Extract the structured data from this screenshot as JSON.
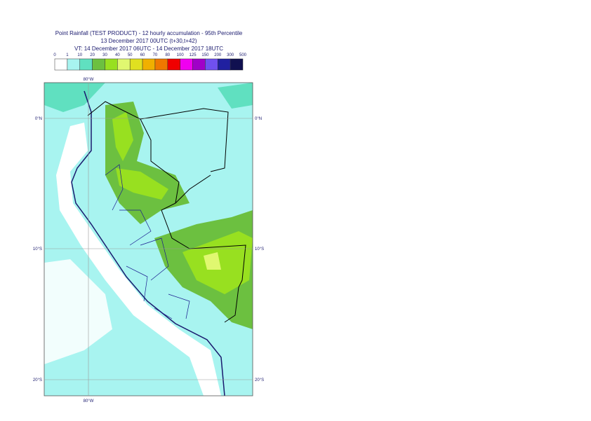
{
  "header": {
    "title": "Point Rainfall (TEST PRODUCT) - 12 hourly accumulation - 95th Percentile",
    "base_time": "13 December 2017 00UTC (t+30,t+42)",
    "valid_time": "VT: 14 December 2017 06UTC - 14 December 2017 18UTC"
  },
  "legend": {
    "thresholds": [
      "0",
      "1",
      "10",
      "20",
      "30",
      "40",
      "50",
      "60",
      "70",
      "80",
      "100",
      "125",
      "150",
      "200",
      "300",
      "500"
    ],
    "colors": [
      "#ffffff",
      "#a8f4f0",
      "#60e0c0",
      "#6cc040",
      "#98e020",
      "#e0f870",
      "#e0e020",
      "#f0b000",
      "#f07800",
      "#f00000",
      "#f000f0",
      "#a000c8",
      "#7050f0",
      "#2020a0",
      "#101050"
    ]
  },
  "map": {
    "lon_top": "80°W",
    "lon_bottom": "80°W",
    "lat_labels": [
      {
        "left": "0°N",
        "right": "0°N"
      },
      {
        "left": "10°S",
        "right": "10°S"
      },
      {
        "left": "20°S",
        "right": "20°S"
      }
    ]
  }
}
